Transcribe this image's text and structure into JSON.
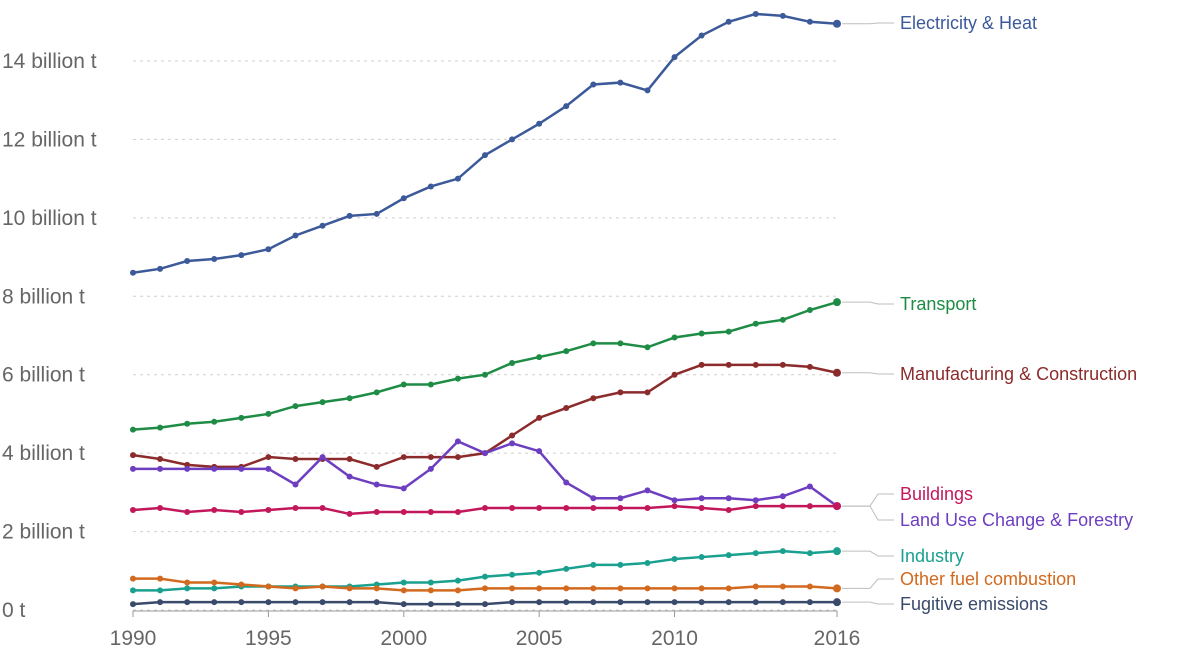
{
  "chart_data": {
    "type": "line",
    "x_range": [
      1990,
      2016
    ],
    "ylim": [
      0,
      15200000000
    ],
    "grid": true,
    "x_ticks": [
      {
        "value": 1990,
        "label": "1990"
      },
      {
        "value": 1995,
        "label": "1995"
      },
      {
        "value": 2000,
        "label": "2000"
      },
      {
        "value": 2005,
        "label": "2005"
      },
      {
        "value": 2010,
        "label": "2010"
      },
      {
        "value": 2016,
        "label": "2016"
      }
    ],
    "y_ticks": [
      {
        "value": 0,
        "label": "0 t"
      },
      {
        "value": 2000000000,
        "label": "2 billion t"
      },
      {
        "value": 4000000000,
        "label": "4 billion t"
      },
      {
        "value": 6000000000,
        "label": "6 billion t"
      },
      {
        "value": 8000000000,
        "label": "8 billion t"
      },
      {
        "value": 10000000000,
        "label": "10 billion t"
      },
      {
        "value": 12000000000,
        "label": "12 billion t"
      },
      {
        "value": 14000000000,
        "label": "14 billion t"
      }
    ],
    "x": [
      1990,
      1991,
      1992,
      1993,
      1994,
      1995,
      1996,
      1997,
      1998,
      1999,
      2000,
      2001,
      2002,
      2003,
      2004,
      2005,
      2006,
      2007,
      2008,
      2009,
      2010,
      2011,
      2012,
      2013,
      2014,
      2015,
      2016
    ],
    "series": [
      {
        "name": "Electricity & Heat",
        "color": "#3c5a99",
        "key": "electricity-heat",
        "values": [
          8.6,
          8.7,
          8.9,
          8.95,
          9.05,
          9.2,
          9.55,
          9.8,
          10.05,
          10.1,
          10.5,
          10.8,
          11.0,
          11.6,
          12.0,
          12.4,
          12.85,
          13.4,
          13.45,
          13.25,
          14.1,
          14.65,
          15.0,
          15.2,
          15.15,
          15.0,
          14.95
        ]
      },
      {
        "name": "Transport",
        "color": "#1e8c45",
        "key": "transport",
        "values": [
          4.6,
          4.65,
          4.75,
          4.8,
          4.9,
          5.0,
          5.2,
          5.3,
          5.4,
          5.55,
          5.75,
          5.75,
          5.9,
          6.0,
          6.3,
          6.45,
          6.6,
          6.8,
          6.8,
          6.7,
          6.95,
          7.05,
          7.1,
          7.3,
          7.4,
          7.65,
          7.85
        ]
      },
      {
        "name": "Manufacturing & Construction",
        "color": "#8c2b2b",
        "key": "manufacturing-construction",
        "values": [
          3.95,
          3.85,
          3.7,
          3.65,
          3.65,
          3.9,
          3.85,
          3.85,
          3.85,
          3.65,
          3.9,
          3.9,
          3.9,
          4.0,
          4.45,
          4.9,
          5.15,
          5.4,
          5.55,
          5.55,
          6.0,
          6.25,
          6.25,
          6.25,
          6.25,
          6.2,
          6.05
        ]
      },
      {
        "name": "Land Use Change & Forestry",
        "color": "#6d3fc0",
        "key": "land-use-change-forestry",
        "values": [
          3.6,
          3.6,
          3.6,
          3.6,
          3.6,
          3.6,
          3.2,
          3.9,
          3.4,
          3.2,
          3.1,
          3.6,
          4.3,
          4.0,
          4.25,
          4.05,
          3.25,
          2.85,
          2.85,
          3.05,
          2.8,
          2.85,
          2.85,
          2.8,
          2.9,
          3.15,
          2.65
        ]
      },
      {
        "name": "Buildings",
        "color": "#c2185b",
        "key": "buildings",
        "values": [
          2.55,
          2.6,
          2.5,
          2.55,
          2.5,
          2.55,
          2.6,
          2.6,
          2.45,
          2.5,
          2.5,
          2.5,
          2.5,
          2.6,
          2.6,
          2.6,
          2.6,
          2.6,
          2.6,
          2.6,
          2.65,
          2.6,
          2.55,
          2.65,
          2.65,
          2.65,
          2.65
        ]
      },
      {
        "name": "Industry",
        "color": "#1aa08f",
        "key": "industry",
        "values": [
          0.5,
          0.5,
          0.55,
          0.55,
          0.6,
          0.6,
          0.6,
          0.6,
          0.6,
          0.65,
          0.7,
          0.7,
          0.75,
          0.85,
          0.9,
          0.95,
          1.05,
          1.15,
          1.15,
          1.2,
          1.3,
          1.35,
          1.4,
          1.45,
          1.5,
          1.45,
          1.5
        ]
      },
      {
        "name": "Other fuel combustion",
        "color": "#d2691e",
        "key": "other-fuel-combustion",
        "values": [
          0.8,
          0.8,
          0.7,
          0.7,
          0.65,
          0.6,
          0.55,
          0.6,
          0.55,
          0.55,
          0.5,
          0.5,
          0.5,
          0.55,
          0.55,
          0.55,
          0.55,
          0.55,
          0.55,
          0.55,
          0.55,
          0.55,
          0.55,
          0.6,
          0.6,
          0.6,
          0.55
        ]
      },
      {
        "name": "Fugitive emissions",
        "color": "#3a4a6b",
        "key": "fugitive-emissions",
        "values": [
          0.15,
          0.2,
          0.2,
          0.2,
          0.2,
          0.2,
          0.2,
          0.2,
          0.2,
          0.2,
          0.15,
          0.15,
          0.15,
          0.15,
          0.2,
          0.2,
          0.2,
          0.2,
          0.2,
          0.2,
          0.2,
          0.2,
          0.2,
          0.2,
          0.2,
          0.2,
          0.2
        ]
      }
    ],
    "value_unit": "billion t"
  }
}
